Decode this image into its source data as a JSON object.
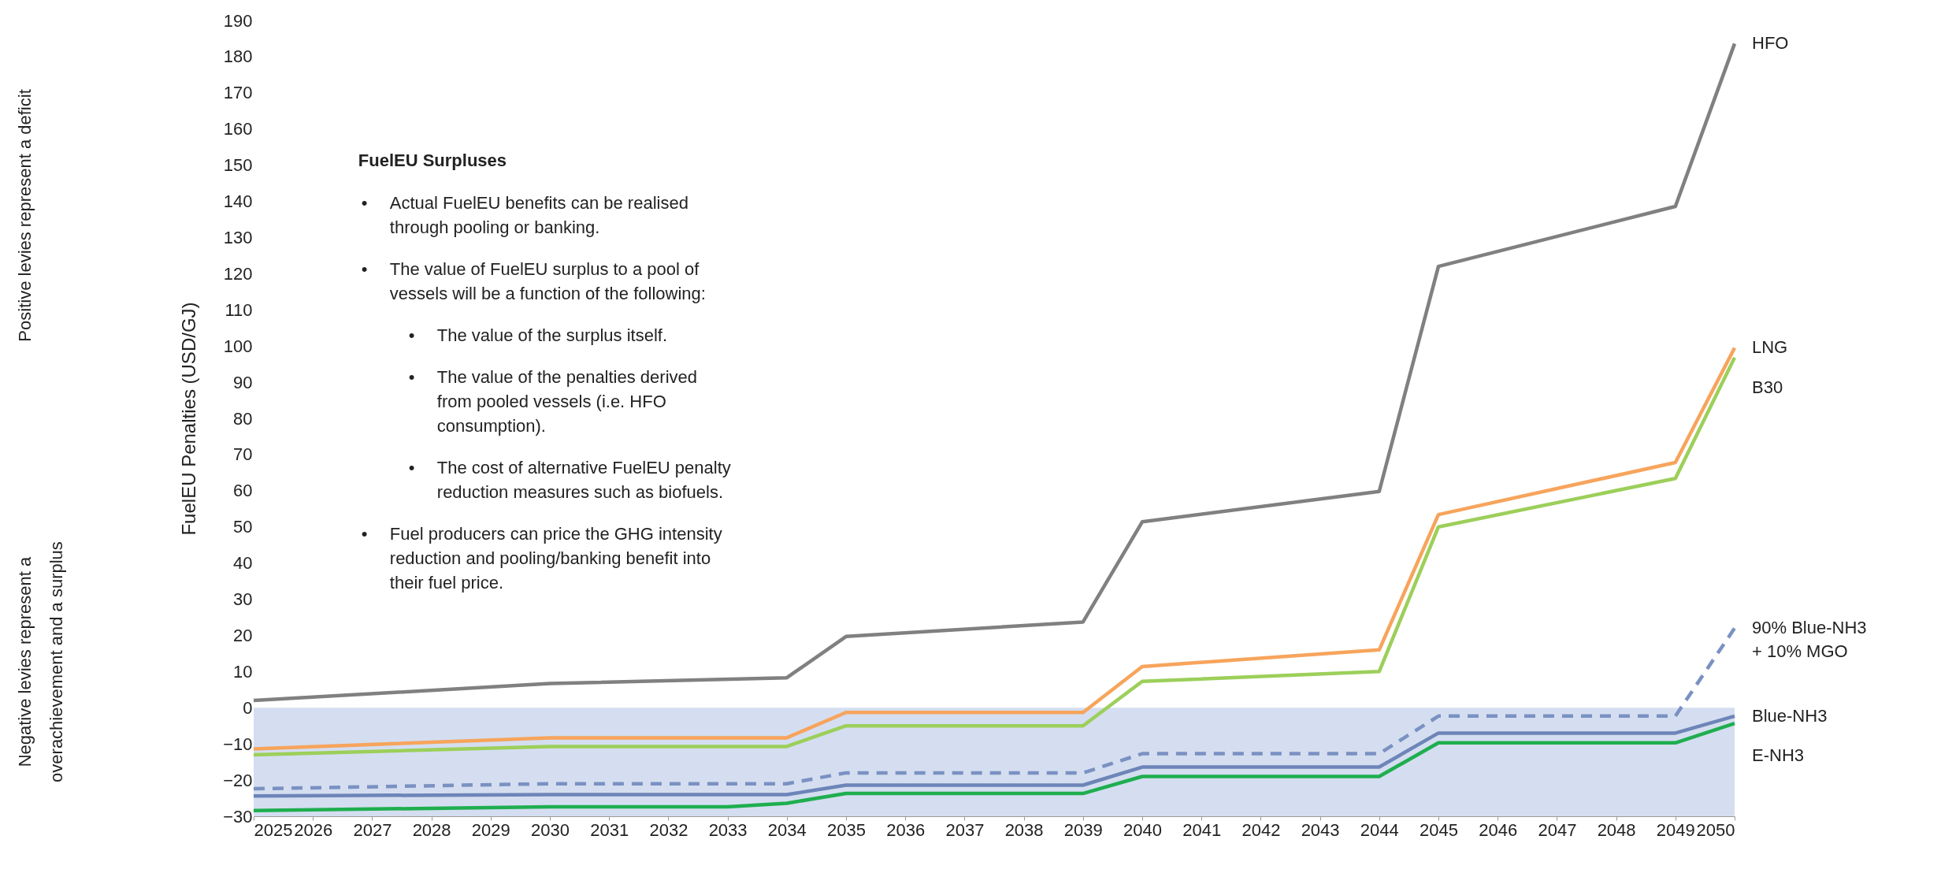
{
  "chart_data": {
    "type": "line",
    "ylabel": "FuelEU Penalties (USD/GJ)",
    "xlim": [
      2025,
      2050
    ],
    "xticks": [
      2025,
      2026,
      2027,
      2028,
      2029,
      2030,
      2031,
      2032,
      2033,
      2034,
      2035,
      2036,
      2037,
      2038,
      2039,
      2040,
      2041,
      2042,
      2043,
      2044,
      2045,
      2046,
      2047,
      2048,
      2049,
      2050
    ],
    "ylim": [
      -30,
      190
    ],
    "yticks": [
      -30,
      -20,
      -10,
      0,
      10,
      20,
      30,
      40,
      50,
      60,
      70,
      80,
      90,
      100,
      110,
      120,
      130,
      140,
      150,
      160,
      170,
      180,
      190
    ],
    "grid": false,
    "line_style": "solid",
    "bands": [
      {
        "axis": "y",
        "from": -30,
        "to": 0,
        "color": "#c9d6ec"
      }
    ],
    "series": [
      {
        "name": "HFO",
        "color": "#808080",
        "x": [
          2025,
          2030,
          2034,
          2035,
          2039,
          2040,
          2044,
          2045,
          2049,
          2050
        ],
        "values": [
          2,
          6.7,
          8.3,
          19.7,
          23.7,
          51.4,
          59.8,
          122,
          138.6,
          183.6
        ]
      },
      {
        "name": "LNG",
        "color": "#f7a45c",
        "x": [
          2025,
          2030,
          2034,
          2035,
          2039,
          2040,
          2044,
          2045,
          2049,
          2050
        ],
        "values": [
          -11.4,
          -8.3,
          -8.3,
          -1.3,
          -1.3,
          11.4,
          16,
          53.4,
          67.8,
          99.5
        ]
      },
      {
        "name": "B30",
        "color": "#9ccf5a",
        "x": [
          2025,
          2030,
          2034,
          2035,
          2039,
          2040,
          2044,
          2045,
          2049,
          2050
        ],
        "values": [
          -13,
          -10.7,
          -10.7,
          -5,
          -5,
          7.3,
          10,
          50,
          63.4,
          96.8
        ]
      },
      {
        "name": "90% Blue-NH3 + 10% MGO",
        "color": "#7a91c2",
        "line_style": "dashed",
        "x": [
          2025,
          2030,
          2034,
          2035,
          2039,
          2040,
          2044,
          2045,
          2049,
          2050
        ],
        "values": [
          -22.4,
          -21,
          -21,
          -18,
          -18,
          -12.7,
          -12.7,
          -2.3,
          -2.3,
          22
        ]
      },
      {
        "name": "Blue-NH3",
        "color": "#6d85b8",
        "x": [
          2025,
          2030,
          2034,
          2035,
          2039,
          2040,
          2044,
          2045,
          2049,
          2050
        ],
        "values": [
          -24.4,
          -24,
          -24,
          -21.4,
          -21.4,
          -16.4,
          -16.4,
          -7,
          -7,
          -2.3
        ]
      },
      {
        "name": "E-NH3",
        "color": "#1fae4f",
        "x": [
          2025,
          2030,
          2033,
          2034,
          2035,
          2039,
          2040,
          2044,
          2045,
          2049,
          2050
        ],
        "values": [
          -28.4,
          -27.4,
          -27.4,
          -26.4,
          -23.7,
          -23.7,
          -19,
          -19,
          -9.7,
          -9.7,
          -4.3
        ]
      }
    ],
    "annotations": [
      "Positive levies represent a deficit",
      "Negative levies represent a overachievement and a surplus",
      "FuelEU Surpluses",
      "• Actual FuelEU benefits can be realised through pooling or banking.",
      "• The value of FuelEU surplus to a pool of vessels will be a function of the following:",
      "• The value of the surplus itself.",
      "• The value of the penalties derived from pooled vessels (i.e. HFO consumption).",
      "• The cost of alternative FuelEU penalty reduction measures such as biofuels.",
      "• Fuel producers can price the GHG intensity reduction and pooling/banking benefit into their fuel price."
    ]
  }
}
